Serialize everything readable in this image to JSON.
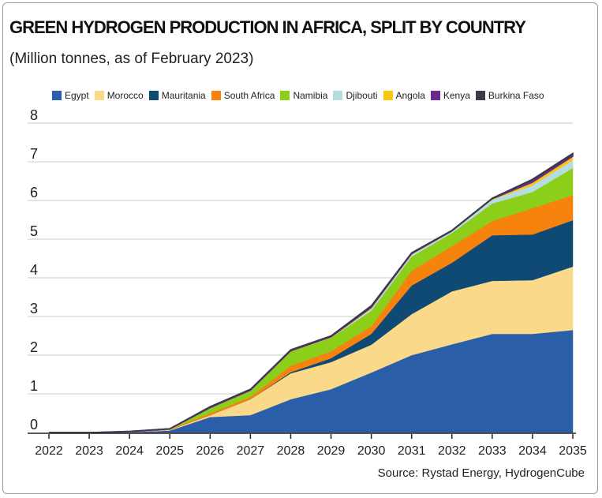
{
  "chart_data": {
    "type": "area",
    "stacked": true,
    "title": "GREEN HYDROGEN PRODUCTION IN AFRICA, SPLIT BY COUNTRY",
    "subtitle": "(Million tonnes, as of February 2023)",
    "xlabel": "",
    "ylabel": "",
    "x": [
      "2022",
      "2023",
      "2024",
      "2025",
      "2026",
      "2027",
      "2028",
      "2029",
      "2030",
      "2031",
      "2032",
      "2033",
      "2034",
      "2035"
    ],
    "ylim": [
      0,
      8
    ],
    "yticks": [
      "0",
      "1",
      "2",
      "3",
      "4",
      "5",
      "6",
      "7",
      "8"
    ],
    "grid": true,
    "legend_position": "top",
    "series": [
      {
        "name": "Egypt",
        "color": "#2a5ea8",
        "values": [
          0,
          0,
          0.01,
          0.05,
          0.4,
          0.45,
          0.86,
          1.12,
          1.55,
          2.0,
          2.28,
          2.55,
          2.55,
          2.65
        ]
      },
      {
        "name": "Morocco",
        "color": "#fbd98a",
        "values": [
          0,
          0,
          0,
          0.02,
          0.05,
          0.41,
          0.67,
          0.7,
          0.72,
          1.06,
          1.37,
          1.37,
          1.39,
          1.64
        ]
      },
      {
        "name": "Mauritania",
        "color": "#0e4a73",
        "values": [
          0,
          0,
          0,
          0,
          0,
          0,
          0.03,
          0.1,
          0.28,
          0.74,
          0.74,
          1.18,
          1.18,
          1.2
        ]
      },
      {
        "name": "South Africa",
        "color": "#f7830f",
        "values": [
          0,
          0,
          0,
          0.01,
          0.05,
          0.06,
          0.17,
          0.18,
          0.2,
          0.38,
          0.43,
          0.37,
          0.68,
          0.65
        ]
      },
      {
        "name": "Namibia",
        "color": "#8ccf1a",
        "values": [
          0,
          0,
          0.01,
          0.01,
          0.13,
          0.16,
          0.37,
          0.35,
          0.4,
          0.37,
          0.34,
          0.45,
          0.42,
          0.7
        ]
      },
      {
        "name": "Djibouti",
        "color": "#b5dde0",
        "values": [
          0,
          0,
          0,
          0,
          0,
          0,
          0,
          0,
          0.05,
          0.05,
          0.04,
          0.1,
          0.17,
          0.2
        ]
      },
      {
        "name": "Angola",
        "color": "#f9c712",
        "values": [
          0,
          0,
          0,
          0,
          0.01,
          0.01,
          0.01,
          0.02,
          0.03,
          0.02,
          0.01,
          0.02,
          0.08,
          0.1
        ]
      },
      {
        "name": "Kenya",
        "color": "#6a2a8c",
        "values": [
          0,
          0,
          0.01,
          0.01,
          0.02,
          0.02,
          0.02,
          0.02,
          0.03,
          0.02,
          0.01,
          0.01,
          0.06,
          0.05
        ]
      },
      {
        "name": "Burkina Faso",
        "color": "#3a3a4a",
        "values": [
          0,
          0,
          0,
          0,
          0.01,
          0.01,
          0.01,
          0.01,
          0.02,
          0.01,
          0.01,
          0.01,
          0.02,
          0.03
        ]
      }
    ],
    "source": "Source: Rystad Energy, HydrogenCube"
  }
}
